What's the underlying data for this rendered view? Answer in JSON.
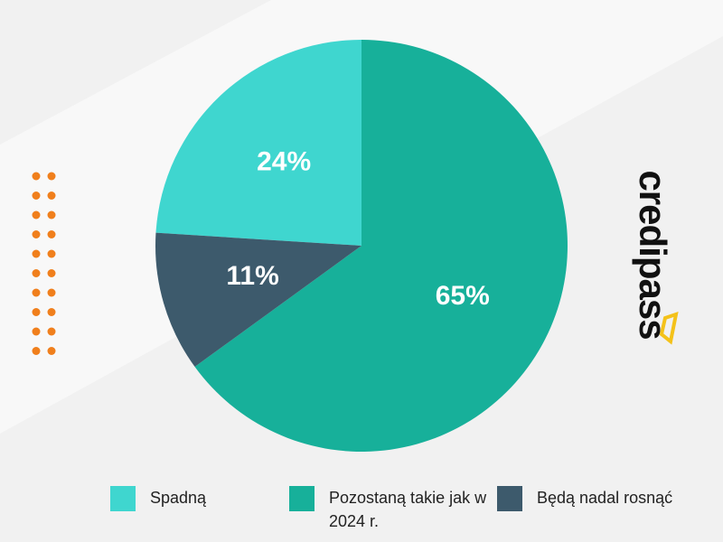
{
  "chart_data": {
    "type": "pie",
    "categories": [
      "Spadną",
      "Pozostaną takie jak w 2024 r.",
      "Będą nadal rosnąć"
    ],
    "values": [
      24,
      65,
      11
    ],
    "value_labels": [
      "24%",
      "65%",
      "11%"
    ],
    "colors": [
      "#3fd6cf",
      "#17b09a",
      "#3d5a6c"
    ]
  },
  "brand": "credipass"
}
